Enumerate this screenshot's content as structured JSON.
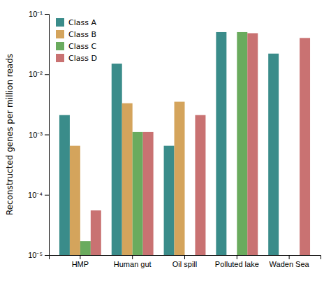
{
  "chart_data": {
    "type": "bar",
    "categories": [
      "HMP",
      "Human gut",
      "Oil spill",
      "Polluted lake",
      "Waden Sea"
    ],
    "series": [
      {
        "name": "Class A",
        "color": "#3a8c8a",
        "values": [
          0.0021,
          0.015,
          0.00065,
          0.05,
          0.022
        ]
      },
      {
        "name": "Class B",
        "color": "#d4a45c",
        "values": [
          0.00065,
          0.0033,
          0.0035,
          null,
          null
        ]
      },
      {
        "name": "Class C",
        "color": "#6aab5e",
        "values": [
          1.7e-05,
          0.0011,
          null,
          0.05,
          null
        ]
      },
      {
        "name": "Class D",
        "color": "#c97272",
        "values": [
          5.5e-05,
          0.0011,
          0.0021,
          0.048,
          0.04
        ]
      }
    ],
    "y_label": "Reconstructed genes per million reads",
    "log": "y",
    "ylim": [
      1e-05,
      0.1
    ],
    "yticks": [
      {
        "value": 1e-05,
        "label": "10⁻⁵"
      },
      {
        "value": 0.0001,
        "label": "10⁻⁴"
      },
      {
        "value": 0.001,
        "label": "10⁻³"
      },
      {
        "value": 0.01,
        "label": "10⁻²"
      },
      {
        "value": 0.1,
        "label": "10⁻¹"
      }
    ],
    "grid": false,
    "legend": "upper left"
  }
}
